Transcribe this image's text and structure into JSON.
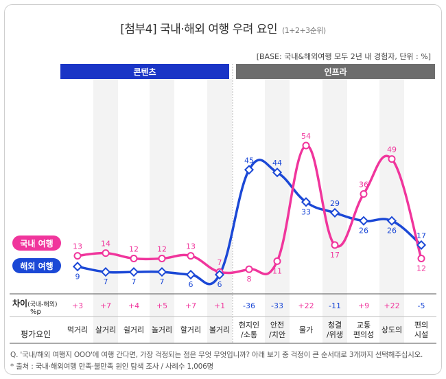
{
  "title": "[첨부4] 국내·해외 여행 우려 요인",
  "subtitle": "(1+2+3순위)",
  "base_note": "[BASE: 국내&해외여행 모두 2년 내 경험자, 단위 : %]",
  "groups": [
    {
      "label": "콘텐츠",
      "color": "#1a35c6"
    },
    {
      "label": "인프라",
      "color": "#6d6d6d"
    }
  ],
  "legend": {
    "domestic": "국내 여행",
    "overseas": "해외 여행"
  },
  "diff_row": {
    "label": "차이",
    "label_small": "(국내-해외)",
    "unit": "%p"
  },
  "category_row_label": "평가요인",
  "footnote_q": "Q. '국내/해외 여행지 OOO'에 여행 간다면, 가장 걱정되는 점은 무엇 무엇입니까? 아래 보기 중 걱정이 큰 순서대로 3개까지 선택해주십시오.",
  "footnote_src": "* 출처 : 국내·해외여행 만족·불만족 원인 탐색 조사 / 사례수 1,006명",
  "chart_data": {
    "type": "line",
    "categories": [
      "먹거리",
      "살거리",
      "쉴거리",
      "놀거리",
      "할거리",
      "볼거리",
      "현지인\n/소통",
      "안전\n/치안",
      "물가",
      "청결\n/위생",
      "교통\n편의성",
      "상도의",
      "편의\n시설"
    ],
    "category_group": [
      0,
      0,
      0,
      0,
      0,
      0,
      1,
      1,
      1,
      1,
      1,
      1,
      1
    ],
    "series": [
      {
        "name": "국내 여행",
        "color": "#f0359c",
        "values": [
          13,
          14,
          12,
          12,
          13,
          7,
          8,
          11,
          54,
          17,
          36,
          49,
          12
        ]
      },
      {
        "name": "해외 여행",
        "color": "#1b48d6",
        "values": [
          9,
          7,
          7,
          7,
          6,
          6,
          45,
          44,
          33,
          29,
          26,
          26,
          17
        ]
      }
    ],
    "differences": [
      "+3",
      "+7",
      "+4",
      "+5",
      "+7",
      "+1",
      "-36",
      "-33",
      "+22",
      "-11",
      "+9",
      "+22",
      "-5"
    ],
    "difference_colors": {
      "positive": "#f0359c",
      "negative": "#1b48d6"
    },
    "ylim": [
      0,
      60
    ],
    "grid": false,
    "legend_position": "left"
  }
}
